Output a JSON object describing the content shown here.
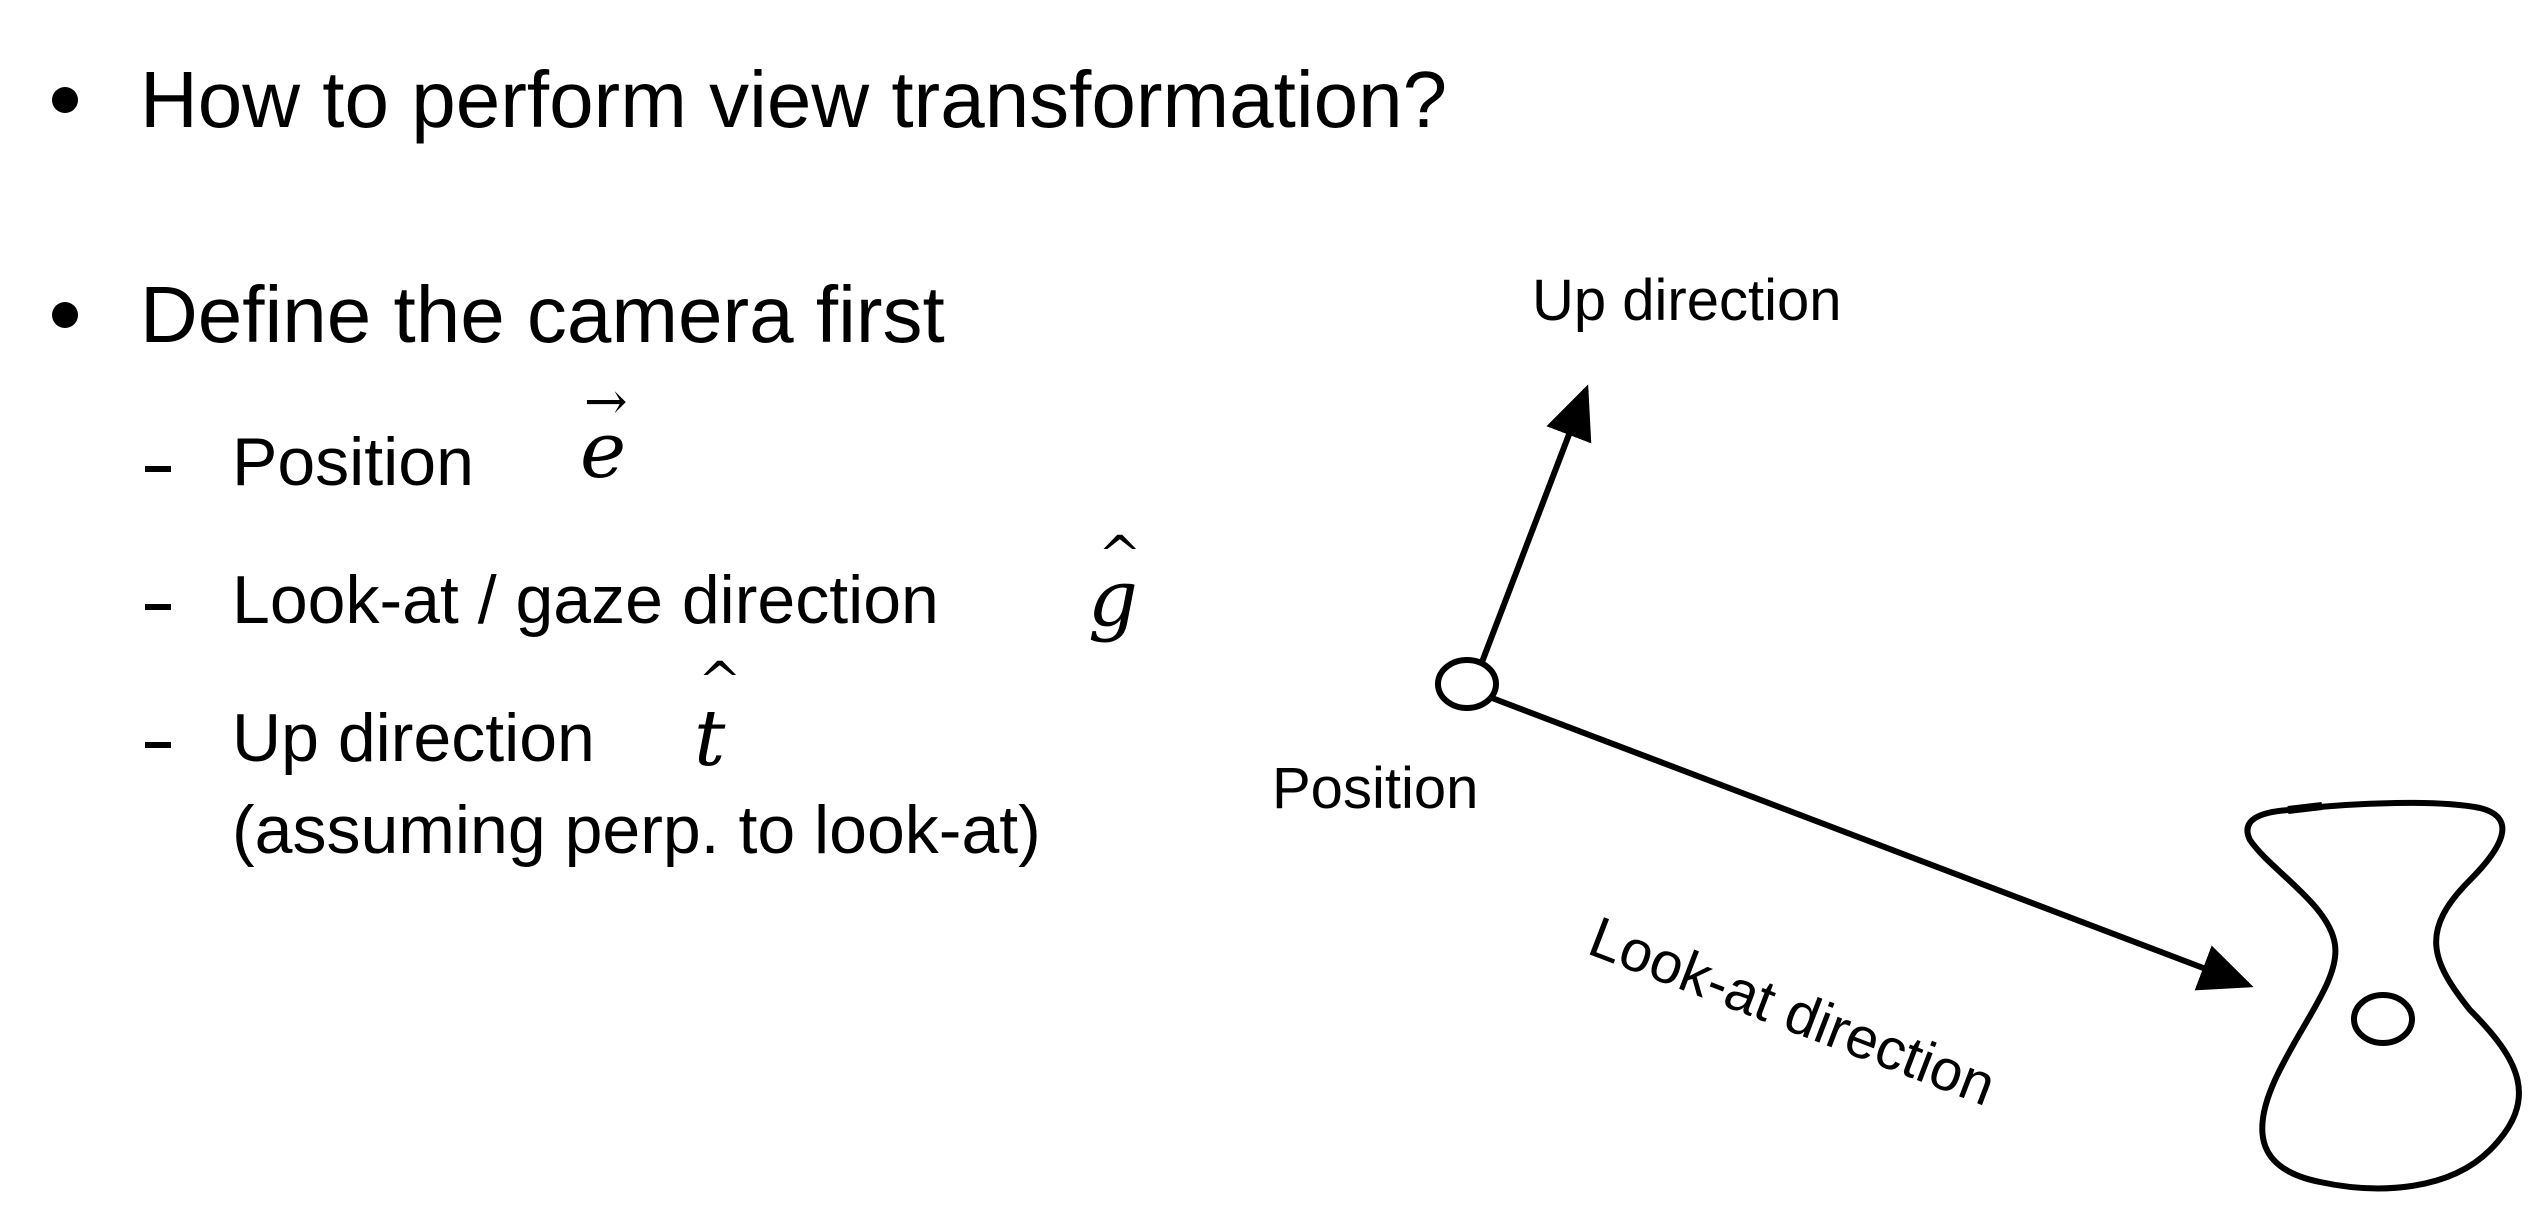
{
  "bullets": [
    {
      "text": "How to perform view transformation?"
    },
    {
      "text": "Define the camera first"
    }
  ],
  "sub_items": [
    {
      "text": "Position",
      "symbol": "e",
      "accent": "→"
    },
    {
      "text": "Look-at / gaze direction",
      "symbol": "g",
      "accent": "^"
    },
    {
      "text": "Up direction",
      "symbol": "t",
      "accent": "^",
      "note": "(assuming perp. to look-at)"
    }
  ],
  "diagram": {
    "up_label": "Up direction",
    "position_label": "Position",
    "lookat_label": "Look-at direction",
    "stroke_color": "#000000"
  }
}
